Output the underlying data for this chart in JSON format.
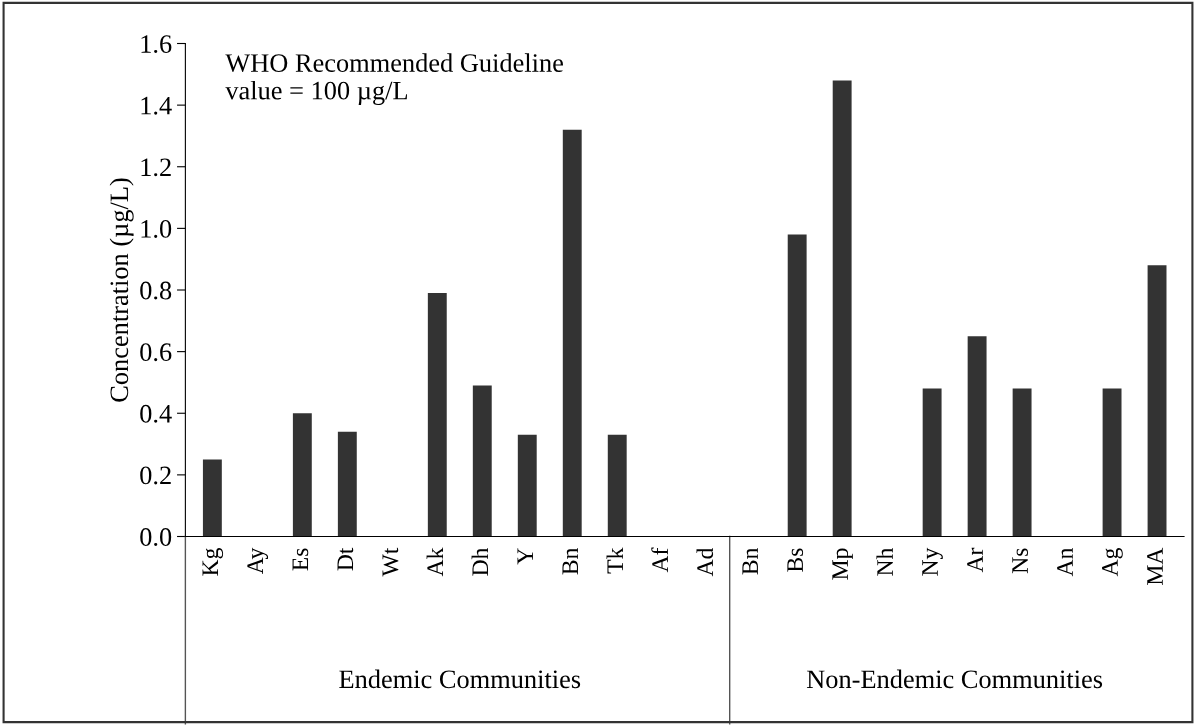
{
  "chart_data": {
    "type": "bar",
    "ylabel": "Concentration (µg/L)",
    "categories": [
      "Kg",
      "Ay",
      "Es",
      "Dt",
      "Wt",
      "Ak",
      "Dh",
      "Y",
      "Bn",
      "Tk",
      "Af",
      "Ad",
      "Bn",
      "Bs",
      "Mp",
      "Nh",
      "Ny",
      "Ar",
      "Ns",
      "An",
      "Ag",
      "MA"
    ],
    "values": [
      0.25,
      0,
      0.4,
      0.34,
      0,
      0.79,
      0.49,
      0.33,
      1.32,
      0.33,
      0,
      0,
      0,
      0.98,
      1.48,
      0,
      0.48,
      0.65,
      0.48,
      0,
      0.48,
      0.88
    ],
    "color": "#333333",
    "ylim": [
      0,
      1.6
    ],
    "yticks": [
      {
        "value": 0,
        "label": "0.0"
      },
      {
        "value": 0.2,
        "label": "0.2"
      },
      {
        "value": 0.4,
        "label": "0.4"
      },
      {
        "value": 0.6,
        "label": "0.6"
      },
      {
        "value": 0.8,
        "label": "0.8"
      },
      {
        "value": 1.0,
        "label": "1.0"
      },
      {
        "value": 1.2,
        "label": "1.2"
      },
      {
        "value": 1.4,
        "label": "1.4"
      },
      {
        "value": 1.6,
        "label": "1.6"
      }
    ],
    "grid": false,
    "annotations": [
      "WHO Recommended Guideline\nvalue = 100 µg/L",
      "Endemic Communities",
      "Non-Endemic Communities"
    ]
  }
}
